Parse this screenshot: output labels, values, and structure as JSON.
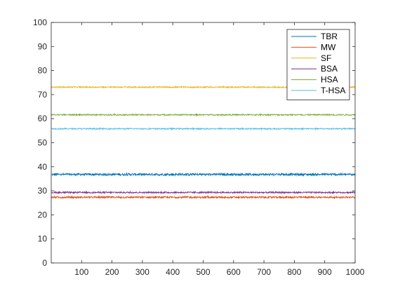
{
  "chart_data": {
    "type": "line",
    "title": "",
    "xlabel": "",
    "ylabel": "",
    "xlim": [
      0,
      1000
    ],
    "ylim": [
      0,
      100
    ],
    "x_ticks": [
      100,
      200,
      300,
      400,
      500,
      600,
      700,
      800,
      900,
      1000
    ],
    "y_ticks": [
      0,
      10,
      20,
      30,
      40,
      50,
      60,
      70,
      80,
      90,
      100
    ],
    "grid": false,
    "legend_position": "top-right",
    "n_points": 1000,
    "series": [
      {
        "name": "TBR",
        "color": "#0072BD",
        "mean": 36.8,
        "noise_amplitude": 0.45
      },
      {
        "name": "MW",
        "color": "#D95319",
        "mean": 27.3,
        "noise_amplitude": 0.35
      },
      {
        "name": "SF",
        "color": "#EDB120",
        "mean": 73.1,
        "noise_amplitude": 0.25
      },
      {
        "name": "BSA",
        "color": "#7E2F8E",
        "mean": 29.3,
        "noise_amplitude": 0.3
      },
      {
        "name": "HSA",
        "color": "#77AC30",
        "mean": 61.6,
        "noise_amplitude": 0.25
      },
      {
        "name": "T-HSA",
        "color": "#4DBEEE",
        "mean": 55.8,
        "noise_amplitude": 0.25
      }
    ]
  }
}
